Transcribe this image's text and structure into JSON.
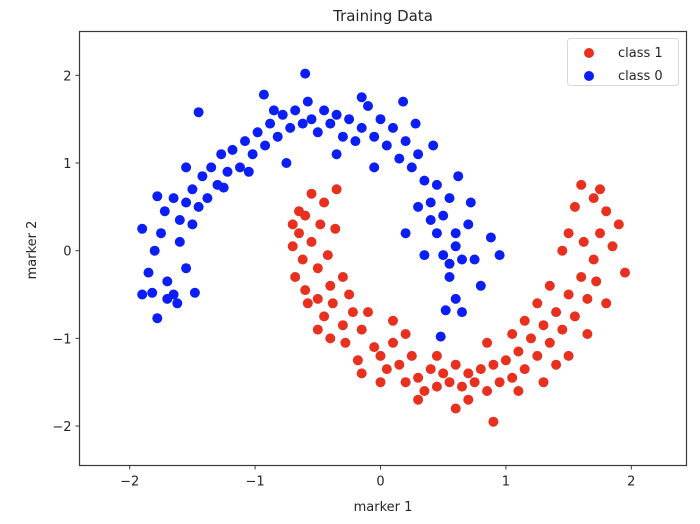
{
  "chart_data": {
    "type": "scatter",
    "title": "Training Data",
    "xlabel": "marker 1",
    "ylabel": "marker 2",
    "xlim": [
      -2.4,
      2.44
    ],
    "ylim": [
      -2.45,
      2.5
    ],
    "xticks": [
      -2,
      -1,
      0,
      1,
      2
    ],
    "yticks": [
      -2,
      -1,
      0,
      1,
      2
    ],
    "xtick_labels": [
      "−2",
      "−1",
      "0",
      "1",
      "2"
    ],
    "ytick_labels": [
      "−2",
      "−1",
      "0",
      "1",
      "2"
    ],
    "grid": false,
    "legend": {
      "position": "upper right",
      "entries": [
        "class 1",
        "class 0"
      ]
    },
    "marker_radius_px": 5,
    "series": [
      {
        "name": "class 1",
        "color": "#e8301f",
        "description": "lower moon, arc from (-0.7, 0.3) down through (0.5, -1.5) up to (1.8, 0.7)",
        "points": [
          [
            -0.7,
            0.3
          ],
          [
            -0.65,
            0.2
          ],
          [
            -0.6,
            0.4
          ],
          [
            -0.55,
            0.65
          ],
          [
            -0.45,
            0.55
          ],
          [
            -0.35,
            0.7
          ],
          [
            -0.7,
            0.05
          ],
          [
            -0.62,
            -0.1
          ],
          [
            -0.55,
            0.1
          ],
          [
            -0.48,
            0.3
          ],
          [
            -0.68,
            -0.3
          ],
          [
            -0.6,
            -0.45
          ],
          [
            -0.5,
            -0.2
          ],
          [
            -0.42,
            -0.05
          ],
          [
            -0.36,
            0.25
          ],
          [
            -0.3,
            -0.3
          ],
          [
            -0.58,
            -0.6
          ],
          [
            -0.5,
            -0.55
          ],
          [
            -0.45,
            -0.75
          ],
          [
            -0.38,
            -0.6
          ],
          [
            -0.3,
            -0.85
          ],
          [
            -0.22,
            -0.7
          ],
          [
            -0.5,
            -0.9
          ],
          [
            -0.4,
            -1.0
          ],
          [
            -0.28,
            -1.05
          ],
          [
            -0.15,
            -0.9
          ],
          [
            -0.1,
            -0.7
          ],
          [
            -0.05,
            -1.1
          ],
          [
            0.0,
            -1.2
          ],
          [
            -0.18,
            -1.25
          ],
          [
            0.05,
            -1.35
          ],
          [
            0.1,
            -1.05
          ],
          [
            0.15,
            -1.3
          ],
          [
            0.2,
            -1.5
          ],
          [
            0.25,
            -1.2
          ],
          [
            0.3,
            -1.45
          ],
          [
            0.35,
            -1.6
          ],
          [
            0.4,
            -1.35
          ],
          [
            0.45,
            -1.55
          ],
          [
            0.5,
            -1.4
          ],
          [
            0.55,
            -1.5
          ],
          [
            0.6,
            -1.3
          ],
          [
            0.65,
            -1.55
          ],
          [
            0.7,
            -1.4
          ],
          [
            0.75,
            -1.5
          ],
          [
            0.8,
            -1.35
          ],
          [
            0.85,
            -1.6
          ],
          [
            0.9,
            -1.3
          ],
          [
            0.95,
            -1.5
          ],
          [
            1.0,
            -1.25
          ],
          [
            1.05,
            -1.45
          ],
          [
            1.1,
            -1.15
          ],
          [
            1.15,
            -1.35
          ],
          [
            1.2,
            -1.0
          ],
          [
            1.25,
            -1.2
          ],
          [
            1.3,
            -0.85
          ],
          [
            1.35,
            -1.05
          ],
          [
            1.4,
            -0.7
          ],
          [
            1.45,
            -0.9
          ],
          [
            1.5,
            -0.5
          ],
          [
            1.55,
            -0.75
          ],
          [
            1.6,
            -0.3
          ],
          [
            1.65,
            -0.55
          ],
          [
            1.7,
            -0.1
          ],
          [
            1.75,
            0.2
          ],
          [
            1.8,
            0.45
          ],
          [
            1.7,
            0.6
          ],
          [
            1.6,
            0.75
          ],
          [
            1.55,
            0.5
          ],
          [
            1.5,
            0.2
          ],
          [
            1.85,
            0.05
          ],
          [
            1.9,
            0.3
          ],
          [
            1.95,
            -0.25
          ],
          [
            1.45,
            0.0
          ],
          [
            1.62,
            0.1
          ],
          [
            1.72,
            -0.35
          ],
          [
            1.35,
            -0.4
          ],
          [
            1.25,
            -0.6
          ],
          [
            1.15,
            -0.8
          ],
          [
            1.05,
            -0.95
          ],
          [
            0.9,
            -1.95
          ],
          [
            0.6,
            -1.8
          ],
          [
            0.3,
            -1.7
          ],
          [
            0.0,
            -1.5
          ],
          [
            -0.15,
            -1.4
          ],
          [
            1.3,
            -1.5
          ],
          [
            1.5,
            -1.2
          ],
          [
            0.85,
            -1.05
          ],
          [
            -0.65,
            0.45
          ],
          [
            -0.4,
            -0.4
          ],
          [
            -0.25,
            -0.5
          ],
          [
            0.1,
            -0.8
          ],
          [
            0.2,
            -0.95
          ],
          [
            1.1,
            -1.6
          ],
          [
            0.7,
            -1.7
          ],
          [
            0.45,
            -1.2
          ],
          [
            1.4,
            -1.3
          ],
          [
            1.65,
            -0.95
          ],
          [
            1.8,
            -0.6
          ],
          [
            1.75,
            0.7
          ]
        ]
      },
      {
        "name": "class 0",
        "color": "#0a1ef5",
        "description": "upper moon, arc from (-1.9, -0.5) up through (-0.5, 1.5) down to (0.6, -1.0)",
        "points": [
          [
            -1.9,
            -0.5
          ],
          [
            -1.85,
            -0.25
          ],
          [
            -1.8,
            0.0
          ],
          [
            -1.75,
            0.2
          ],
          [
            -1.7,
            -0.35
          ],
          [
            -1.65,
            -0.5
          ],
          [
            -1.6,
            0.1
          ],
          [
            -1.55,
            -0.2
          ],
          [
            -1.5,
            0.3
          ],
          [
            -1.48,
            -0.48
          ],
          [
            -1.78,
            -0.77
          ],
          [
            -1.72,
            0.45
          ],
          [
            -1.65,
            0.6
          ],
          [
            -1.6,
            0.35
          ],
          [
            -1.55,
            0.55
          ],
          [
            -1.5,
            0.7
          ],
          [
            -1.45,
            0.5
          ],
          [
            -1.42,
            0.85
          ],
          [
            -1.38,
            0.6
          ],
          [
            -1.35,
            0.95
          ],
          [
            -1.3,
            0.75
          ],
          [
            -1.27,
            1.1
          ],
          [
            -1.22,
            0.9
          ],
          [
            -1.18,
            1.15
          ],
          [
            -1.12,
            0.95
          ],
          [
            -1.08,
            1.25
          ],
          [
            -1.02,
            1.1
          ],
          [
            -0.98,
            1.35
          ],
          [
            -0.92,
            1.2
          ],
          [
            -0.88,
            1.45
          ],
          [
            -0.82,
            1.3
          ],
          [
            -0.78,
            1.55
          ],
          [
            -0.72,
            1.4
          ],
          [
            -0.68,
            1.6
          ],
          [
            -0.62,
            1.45
          ],
          [
            -0.58,
            1.7
          ],
          [
            -0.55,
            1.5
          ],
          [
            -0.5,
            1.35
          ],
          [
            -0.45,
            1.6
          ],
          [
            -0.4,
            1.45
          ],
          [
            -0.35,
            1.55
          ],
          [
            -0.3,
            1.3
          ],
          [
            -0.25,
            1.5
          ],
          [
            -0.2,
            1.25
          ],
          [
            -0.15,
            1.4
          ],
          [
            -0.1,
            1.65
          ],
          [
            -0.05,
            1.3
          ],
          [
            0.0,
            1.5
          ],
          [
            0.05,
            1.2
          ],
          [
            0.1,
            1.4
          ],
          [
            0.15,
            1.05
          ],
          [
            0.2,
            1.25
          ],
          [
            0.25,
            0.95
          ],
          [
            0.3,
            1.1
          ],
          [
            0.35,
            0.8
          ],
          [
            0.4,
            0.55
          ],
          [
            0.45,
            0.75
          ],
          [
            0.5,
            0.4
          ],
          [
            0.55,
            0.6
          ],
          [
            0.6,
            0.2
          ],
          [
            0.45,
            0.2
          ],
          [
            0.5,
            -0.05
          ],
          [
            0.55,
            -0.3
          ],
          [
            0.6,
            -0.55
          ],
          [
            0.65,
            -0.7
          ],
          [
            0.6,
            0.05
          ],
          [
            0.7,
            0.3
          ],
          [
            0.75,
            -0.1
          ],
          [
            0.8,
            -0.4
          ],
          [
            0.65,
            -0.1
          ],
          [
            0.52,
            -0.68
          ],
          [
            0.48,
            -0.98
          ],
          [
            0.95,
            -0.05
          ],
          [
            0.88,
            0.15
          ],
          [
            0.72,
            0.55
          ],
          [
            0.62,
            0.85
          ],
          [
            0.42,
            1.2
          ],
          [
            0.28,
            1.45
          ],
          [
            0.18,
            1.7
          ],
          [
            -0.6,
            2.02
          ],
          [
            -0.93,
            1.78
          ],
          [
            -1.45,
            1.58
          ],
          [
            -1.78,
            0.62
          ],
          [
            -1.62,
            -0.6
          ],
          [
            -1.9,
            0.25
          ],
          [
            -1.82,
            -0.48
          ],
          [
            -1.7,
            -0.55
          ],
          [
            -0.75,
            1.0
          ],
          [
            -1.05,
            0.9
          ],
          [
            -0.35,
            1.1
          ],
          [
            -0.05,
            0.95
          ],
          [
            0.3,
            0.5
          ],
          [
            0.2,
            0.2
          ],
          [
            0.4,
            0.35
          ],
          [
            0.55,
            -0.15
          ],
          [
            0.35,
            -0.05
          ],
          [
            -1.25,
            0.72
          ],
          [
            -1.55,
            0.95
          ],
          [
            -0.85,
            1.6
          ],
          [
            -0.15,
            1.75
          ]
        ]
      }
    ]
  },
  "ui": {
    "title": "Training Data",
    "xlabel": "marker 1",
    "ylabel": "marker 2",
    "legend": [
      {
        "label": "class 1",
        "color": "#e8301f"
      },
      {
        "label": "class 0",
        "color": "#0a1ef5"
      }
    ]
  }
}
